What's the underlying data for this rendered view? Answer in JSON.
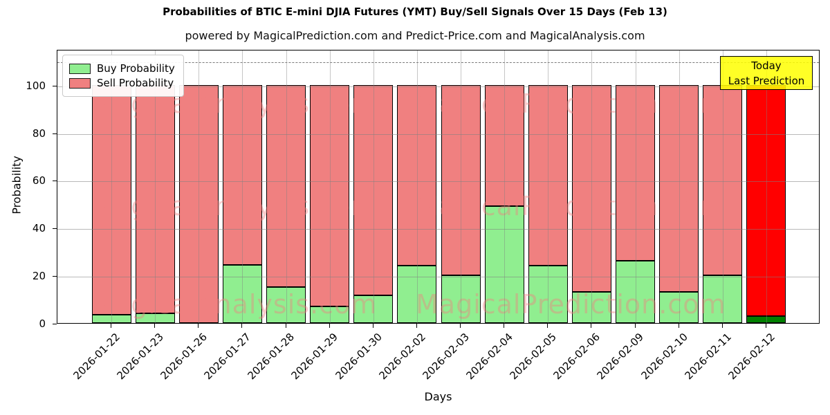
{
  "title": "Probabilities of BTIC E-mini DJIA Futures (YMT) Buy/Sell Signals Over 15 Days (Feb 13)",
  "subtitle": "powered by MagicalPrediction.com and Predict-Price.com and MagicalAnalysis.com",
  "legend": {
    "items": [
      {
        "label": "Buy Probability",
        "color": "#90ee90"
      },
      {
        "label": "Sell Probability",
        "color": "#f08080"
      }
    ]
  },
  "today_box": {
    "line1": "Today",
    "line2": "Last Prediction",
    "bg_color": "#ffff00"
  },
  "watermarks": {
    "color": "#f08080",
    "rows": [
      {
        "left": "MagicalAnalysis.com",
        "right": "MagicalPrediction.com"
      },
      {
        "left": "MagicalAnalysis.com",
        "right": "MagicalPrediction.com"
      },
      {
        "left": "MagicalAnalysis.com",
        "right": "MagicalPrediction.com"
      }
    ]
  },
  "chart_data": {
    "type": "bar",
    "stacked": true,
    "title": "Probabilities of BTIC E-mini DJIA Futures (YMT) Buy/Sell Signals Over 15 Days (Feb 13)",
    "xlabel": "Days",
    "ylabel": "Probability",
    "categories": [
      "2026-01-22",
      "2026-01-23",
      "2026-01-26",
      "2026-01-27",
      "2026-01-28",
      "2026-01-29",
      "2026-01-30",
      "2026-02-02",
      "2026-02-03",
      "2026-02-04",
      "2026-02-05",
      "2026-02-06",
      "2026-02-09",
      "2026-02-10",
      "2026-02-11",
      "2026-02-12"
    ],
    "series": [
      {
        "name": "Buy Probability",
        "color": "#90ee90",
        "values": [
          3.5,
          4,
          0,
          24.5,
          15,
          7,
          11.5,
          24,
          20,
          49,
          24,
          13,
          26,
          13,
          20,
          3
        ]
      },
      {
        "name": "Sell Probability",
        "color": "#f08080",
        "values": [
          96.5,
          96,
          100,
          75.5,
          85,
          93,
          88.5,
          76,
          80,
          51,
          76,
          87,
          74,
          87,
          80,
          97
        ]
      }
    ],
    "yticks": [
      0,
      20,
      40,
      60,
      80,
      100
    ],
    "ylim": [
      0,
      115
    ],
    "dashed_line_y": 110,
    "grid": true,
    "legend_position": "upper left",
    "today_bar": {
      "index": 15,
      "label": "2026-02-12",
      "buy_color": "#008000",
      "sell_color": "#ff0000"
    }
  }
}
